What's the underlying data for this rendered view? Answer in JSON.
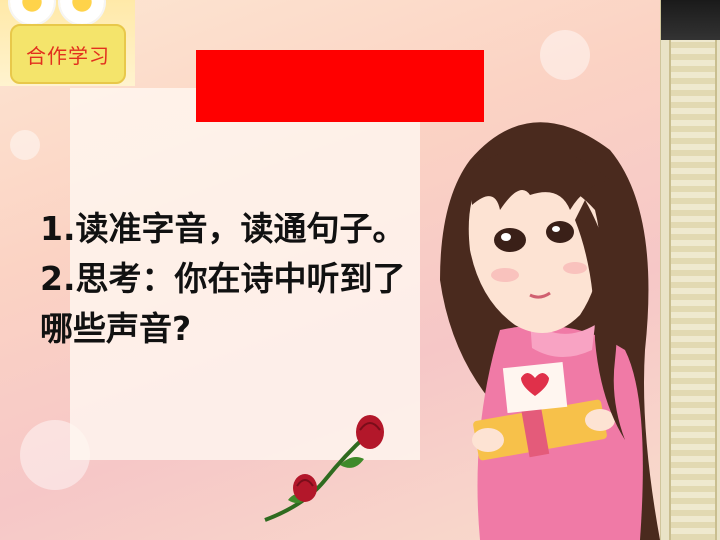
{
  "badge": {
    "label": "合作学习"
  },
  "title_bar": {
    "text": ""
  },
  "tasks": [
    {
      "line": "1.读准字音，读通句子。"
    },
    {
      "line": "2.思考：你在诗中听到了"
    },
    {
      "line": "哪些声音?"
    }
  ],
  "colors": {
    "title_bar": "#ff0000",
    "badge_bg": "#f4e46b",
    "badge_text": "#e2301e",
    "text": "#111111"
  }
}
